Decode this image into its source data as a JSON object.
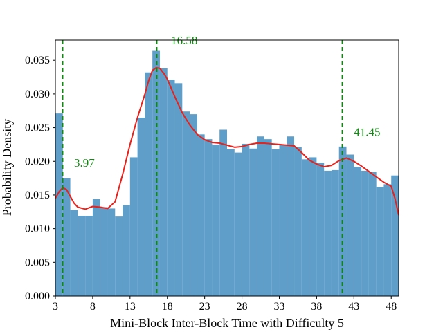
{
  "chart_data": {
    "type": "bar",
    "title": "",
    "xlabel": "Mini-Block Inter-Block Time with Difficulty 5",
    "ylabel": "Probability Density",
    "xlim": [
      3,
      49
    ],
    "ylim": [
      0,
      0.038
    ],
    "xticks": [
      3,
      8,
      13,
      18,
      23,
      28,
      33,
      38,
      43,
      48
    ],
    "xtick_labels": [
      "3",
      "8",
      "13",
      "18",
      "23",
      "28",
      "33",
      "38",
      "43",
      "48"
    ],
    "yticks": [
      0,
      0.005,
      0.01,
      0.015,
      0.02,
      0.025,
      0.03,
      0.035
    ],
    "ytick_labels": [
      "0.000",
      "0.005",
      "0.010",
      "0.015",
      "0.020",
      "0.025",
      "0.030",
      "0.035"
    ],
    "grid": false,
    "histogram": {
      "bin_start": 3,
      "bin_width": 1,
      "values": [
        0.0271,
        0.0175,
        0.0128,
        0.0119,
        0.0119,
        0.0144,
        0.0132,
        0.013,
        0.0118,
        0.0135,
        0.0206,
        0.0265,
        0.0332,
        0.0364,
        0.0338,
        0.0321,
        0.0316,
        0.0274,
        0.027,
        0.024,
        0.0233,
        0.0225,
        0.0247,
        0.0218,
        0.0213,
        0.0226,
        0.0219,
        0.0237,
        0.0233,
        0.0218,
        0.0225,
        0.0237,
        0.0221,
        0.0203,
        0.0206,
        0.0198,
        0.0186,
        0.0187,
        0.0222,
        0.021,
        0.0192,
        0.0186,
        0.0184,
        0.0162,
        0.0166,
        0.0179
      ],
      "color": "#5f9ec9"
    },
    "kde": {
      "color": "#e8211b",
      "x": [
        3,
        3.5,
        4,
        4.5,
        5,
        5.5,
        6,
        7,
        8,
        9,
        10,
        11,
        12,
        13,
        14,
        15,
        15.5,
        16,
        16.5,
        17,
        17.5,
        18,
        19,
        20,
        21,
        22,
        23,
        24,
        25,
        26,
        27,
        28,
        29,
        30,
        31,
        32,
        33,
        34,
        35,
        36,
        37,
        38,
        39,
        40,
        41,
        42,
        43,
        44,
        45,
        46,
        47,
        48,
        48.5,
        49
      ],
      "y": [
        0.0145,
        0.0155,
        0.0161,
        0.0158,
        0.0148,
        0.0138,
        0.0132,
        0.0129,
        0.0133,
        0.0132,
        0.013,
        0.014,
        0.018,
        0.0225,
        0.0265,
        0.03,
        0.032,
        0.0335,
        0.0339,
        0.0338,
        0.0331,
        0.0322,
        0.0296,
        0.0272,
        0.0254,
        0.024,
        0.0232,
        0.0228,
        0.0227,
        0.0224,
        0.0221,
        0.0222,
        0.0225,
        0.0227,
        0.0227,
        0.0226,
        0.0225,
        0.0224,
        0.0223,
        0.0213,
        0.0202,
        0.0196,
        0.0192,
        0.0194,
        0.0201,
        0.0205,
        0.02,
        0.0193,
        0.0185,
        0.0177,
        0.0169,
        0.0163,
        0.0145,
        0.012
      ]
    },
    "vlines": [
      {
        "x": 3.97,
        "label": "3.97",
        "label_x": 5.5,
        "label_y": 0.0192
      },
      {
        "x": 16.58,
        "label": "16.58",
        "label_x": 18.5,
        "label_y": 0.0374
      },
      {
        "x": 41.45,
        "label": "41.45",
        "label_x": 43.0,
        "label_y": 0.0238
      }
    ],
    "vline_color": "#118811"
  }
}
